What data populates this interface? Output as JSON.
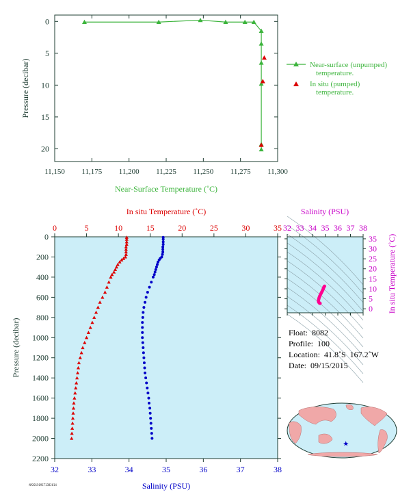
{
  "colors": {
    "green": "#3cb43c",
    "red": "#dc0000",
    "blue": "#0000c8",
    "magenta": "#c800c8",
    "pink": "#ff0090",
    "dark": "#1e3c32",
    "panel_bg": "#cceef8",
    "map_land": "#f0a8a8",
    "map_ocean": "#cceef8"
  },
  "chart_data": [
    {
      "type": "line",
      "xlabel": "Near-Surface Temperature (˚C)",
      "ylabel": "Pressure (decibar)",
      "xlim": [
        11.15,
        11.3
      ],
      "ylim": [
        22,
        -1
      ],
      "x_ticks": [
        "11,150",
        "11,175",
        "11,200",
        "11,225",
        "11,250",
        "11,275",
        "11,300"
      ],
      "x_tick_values": [
        11.15,
        11.175,
        11.2,
        11.225,
        11.25,
        11.275,
        11.3
      ],
      "y_ticks": [
        0,
        5,
        10,
        15,
        20
      ],
      "series": [
        {
          "name": "Near-surface (unpumped) temperature.",
          "x": [
            11.17,
            11.22,
            11.248,
            11.265,
            11.278,
            11.284,
            11.289,
            11.289,
            11.289,
            11.289,
            11.289,
            11.289
          ],
          "y": [
            0.1,
            0.1,
            -0.2,
            0.1,
            0.1,
            0.1,
            1.5,
            3.5,
            6.5,
            9.8,
            19.3,
            20.1
          ]
        },
        {
          "name": "In situ (pumped) temperature.",
          "x": [
            11.291,
            11.29,
            11.289
          ],
          "y": [
            5.7,
            9.4,
            19.4
          ]
        }
      ],
      "legend_position": "right"
    },
    {
      "type": "scatter",
      "top_xlabel": "In situ Temperature (˚C)",
      "bottom_xlabel": "Salinity (PSU)",
      "ylabel": "Pressure (decibar)",
      "temp_xlim": [
        0,
        35
      ],
      "sal_xlim": [
        32,
        38
      ],
      "ylim": [
        2200,
        0
      ],
      "temp_ticks": [
        0,
        5,
        10,
        15,
        20,
        25,
        30,
        35
      ],
      "sal_ticks": [
        32,
        33,
        34,
        35,
        36,
        37,
        38
      ],
      "y_ticks": [
        0,
        200,
        400,
        600,
        800,
        1000,
        1200,
        1400,
        1600,
        1800,
        2000,
        2200
      ],
      "temperature_profile": {
        "pressure": [
          5,
          25,
          50,
          75,
          100,
          125,
          150,
          175,
          200,
          215,
          230,
          250,
          275,
          300,
          325,
          350,
          375,
          400,
          450,
          500,
          550,
          600,
          650,
          700,
          750,
          800,
          850,
          900,
          950,
          1000,
          1050,
          1100,
          1150,
          1200,
          1250,
          1300,
          1350,
          1400,
          1450,
          1500,
          1550,
          1600,
          1650,
          1700,
          1750,
          1800,
          1850,
          1900,
          1950,
          2000
        ],
        "values": [
          11.3,
          11.3,
          11.3,
          11.3,
          11.2,
          11.2,
          11.2,
          11.2,
          11.1,
          10.8,
          10.5,
          10.2,
          9.9,
          9.7,
          9.5,
          9.3,
          9.0,
          8.8,
          8.5,
          8.2,
          7.9,
          7.5,
          7.1,
          6.8,
          6.5,
          6.2,
          5.9,
          5.6,
          5.3,
          5.0,
          4.7,
          4.4,
          4.2,
          4.0,
          3.8,
          3.7,
          3.6,
          3.5,
          3.4,
          3.3,
          3.2,
          3.1,
          3.0,
          2.95,
          2.9,
          2.85,
          2.8,
          2.75,
          2.7,
          2.65
        ]
      },
      "salinity_profile": {
        "pressure": [
          5,
          25,
          50,
          75,
          100,
          125,
          150,
          175,
          200,
          215,
          230,
          250,
          275,
          300,
          325,
          350,
          375,
          400,
          450,
          500,
          550,
          600,
          650,
          700,
          750,
          800,
          850,
          900,
          950,
          1000,
          1050,
          1100,
          1150,
          1200,
          1250,
          1300,
          1350,
          1400,
          1450,
          1500,
          1550,
          1600,
          1650,
          1700,
          1750,
          1800,
          1850,
          1900,
          1950,
          2000
        ],
        "values": [
          34.92,
          34.92,
          34.92,
          34.92,
          34.91,
          34.91,
          34.91,
          34.9,
          34.88,
          34.84,
          34.81,
          34.78,
          34.76,
          34.74,
          34.72,
          34.7,
          34.68,
          34.65,
          34.6,
          34.55,
          34.5,
          34.46,
          34.43,
          34.4,
          34.38,
          34.37,
          34.36,
          34.36,
          34.36,
          34.36,
          34.37,
          34.38,
          34.39,
          34.4,
          34.41,
          34.42,
          34.43,
          34.45,
          34.47,
          34.49,
          34.51,
          34.53,
          34.54,
          34.56,
          34.57,
          34.58,
          34.59,
          34.6,
          34.61,
          34.62
        ]
      }
    },
    {
      "type": "scatter",
      "top_xlabel": "Salinity (PSU)",
      "right_ylabel": "In situ Temperature (˚C)",
      "sal_xlim": [
        32,
        38
      ],
      "temp_ylim": [
        -2,
        36
      ],
      "sal_ticks": [
        32,
        33,
        34,
        35,
        36,
        37,
        38
      ],
      "temp_ticks": [
        0,
        5,
        10,
        15,
        20,
        25,
        30,
        35
      ],
      "ts_points": {
        "salinity": [
          34.95,
          34.91,
          34.88,
          34.85,
          34.82,
          34.78,
          34.74,
          34.7,
          34.66,
          34.62,
          34.58,
          34.55,
          34.52,
          34.5,
          34.48,
          34.47,
          34.47,
          34.48,
          34.5,
          34.53,
          34.56,
          34.6
        ],
        "temperature": [
          11.3,
          11.0,
          10.5,
          10.0,
          9.5,
          9.0,
          8.5,
          8.0,
          7.5,
          7.0,
          6.5,
          6.0,
          5.5,
          5.0,
          4.5,
          4.0,
          3.7,
          3.4,
          3.2,
          3.0,
          2.8,
          2.7
        ]
      }
    }
  ],
  "float_info": {
    "float": "Float:  8082",
    "profile": "Profile:  100",
    "location": "Location:  41.8˚S  167.2˚W",
    "date": "Date:  09/15/2015"
  },
  "map": {
    "marker_lat": -41.8,
    "marker_lon": -167.2
  },
  "footer": {
    "stamp": "AM2015091T13B2014"
  }
}
